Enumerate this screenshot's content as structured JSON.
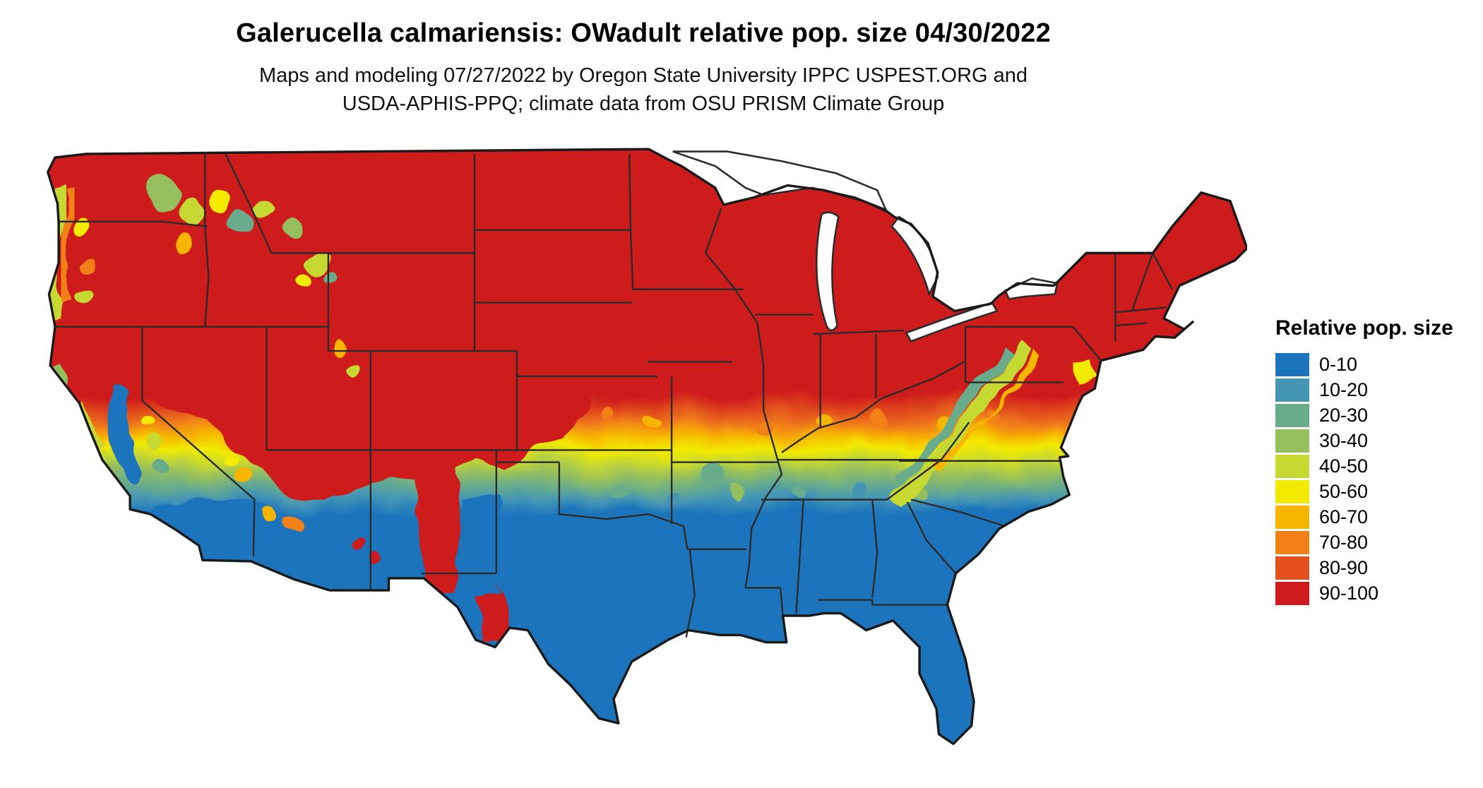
{
  "title": "Galerucella calmariensis: OWadult relative pop. size 04/30/2022",
  "subtitle": {
    "line1": "Maps and modeling 07/27/2022 by Oregon State University IPPC USPEST.ORG and",
    "line2": "USDA-APHIS-PPQ; climate data from OSU PRISM Climate Group"
  },
  "legend": {
    "title": "Relative pop. size",
    "items": [
      {
        "label": "0-10",
        "color": "#1C75BC"
      },
      {
        "label": "10-20",
        "color": "#4596B5"
      },
      {
        "label": "20-30",
        "color": "#68AC8C"
      },
      {
        "label": "30-40",
        "color": "#95BF5E"
      },
      {
        "label": "40-50",
        "color": "#C6D831"
      },
      {
        "label": "50-60",
        "color": "#F2EA00"
      },
      {
        "label": "60-70",
        "color": "#F7B500"
      },
      {
        "label": "70-80",
        "color": "#F18019"
      },
      {
        "label": "80-90",
        "color": "#E3501E"
      },
      {
        "label": "90-100",
        "color": "#CE1A1E"
      }
    ]
  }
}
